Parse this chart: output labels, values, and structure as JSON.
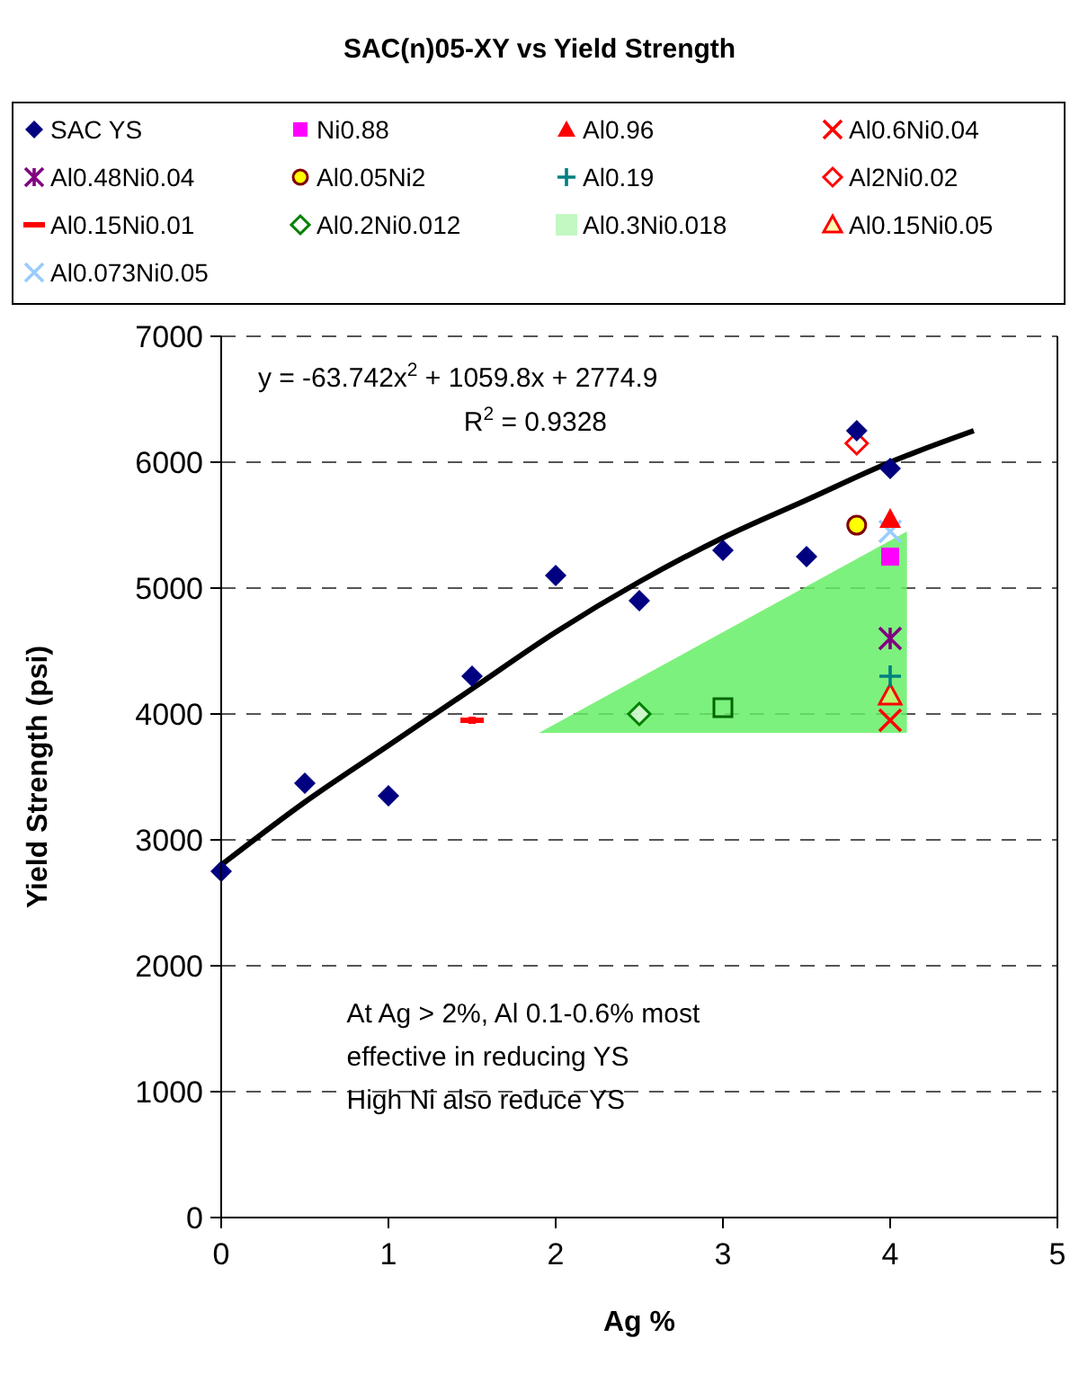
{
  "chart_data": {
    "type": "scatter",
    "title": "SAC(n)05-XY vs Yield Strength",
    "xlabel": "Ag %",
    "ylabel": "Yield Strength (psi)",
    "xlim": [
      0,
      5
    ],
    "xticks": [
      0,
      1,
      2,
      3,
      4,
      5
    ],
    "ylim": [
      0,
      7000
    ],
    "yticks": [
      0,
      1000,
      2000,
      3000,
      4000,
      5000,
      6000,
      7000
    ],
    "grid": "y",
    "legend": "top",
    "series": [
      {
        "name": "SAC YS",
        "color": "#000080",
        "marker": "diamond",
        "x": [
          0,
          0.5,
          1,
          1.5,
          2,
          2.5,
          3,
          3.5,
          3.8,
          4
        ],
        "values": [
          2750,
          3450,
          3350,
          4300,
          5100,
          4900,
          5300,
          5250,
          6250,
          5950
        ]
      },
      {
        "name": "Ni0.88",
        "color": "#ff00ff",
        "marker": "square",
        "x": [
          4
        ],
        "values": [
          5250
        ]
      },
      {
        "name": "Al0.96",
        "color": "#ff0000",
        "marker": "triangle",
        "x": [
          4
        ],
        "values": [
          5550
        ]
      },
      {
        "name": "Al0.6Ni0.04",
        "color": "#ff0000",
        "marker": "cross",
        "x": [
          4
        ],
        "values": [
          3950
        ]
      },
      {
        "name": "Al0.48Ni0.04",
        "color": "#800080",
        "marker": "cross",
        "x": [
          4
        ],
        "values": [
          4600
        ]
      },
      {
        "name": "Al0.05Ni2",
        "color": "#ffff00",
        "marker": "circle",
        "x": [
          3.8
        ],
        "values": [
          5500
        ]
      },
      {
        "name": "Al0.19",
        "color": "#008080",
        "marker": "cross",
        "x": [
          4
        ],
        "values": [
          4300
        ]
      },
      {
        "name": "Al2Ni0.02",
        "color": "#ff0000",
        "marker": "diamond",
        "x": [
          3.8
        ],
        "values": [
          6150
        ]
      },
      {
        "name": "Al0.15Ni0.01",
        "color": "#ff0000",
        "marker": "square",
        "x": [
          1.5
        ],
        "values": [
          3950
        ],
        "xerrors": [
          0.07
        ]
      },
      {
        "name": "Al0.2Ni0.012",
        "color": "#008000",
        "marker": "diamond",
        "x": [
          2.5
        ],
        "values": [
          4000
        ]
      },
      {
        "name": "Al0.3Ni0.018",
        "color": "#66ee66",
        "type": "area",
        "x": [
          1.9,
          4.1,
          4.1
        ],
        "values": [
          3850,
          5450,
          3850
        ]
      },
      {
        "name": "Al0.15Ni0.05",
        "color": "#ff0000",
        "marker": "triangle",
        "x": [
          4
        ],
        "values": [
          4150
        ]
      },
      {
        "name": "Al0.073Ni0.05",
        "color": "#99ccff",
        "marker": "cross",
        "x": [
          4
        ],
        "values": [
          5450
        ]
      },
      {
        "color": "#006600",
        "marker": "square",
        "x": [
          3
        ],
        "values": [
          4050
        ]
      },
      {
        "type": "line",
        "color": "#000000",
        "x": [
          0,
          0.5,
          1,
          1.5,
          2,
          2.5,
          3,
          3.5,
          4,
          4.5
        ],
        "values": [
          2800,
          3300,
          3750,
          4200,
          4650,
          5050,
          5400,
          5700,
          6000,
          6250
        ]
      }
    ],
    "annotations": [
      "y = -63.742x$^{2}$ + 1059.8x + 2774.9",
      "R$^{2}$ = 0.9328",
      "At Ag > 2%, Al 0.1-0.6% most",
      "effective in reducing YS",
      "High Ni also reduce YS"
    ]
  }
}
